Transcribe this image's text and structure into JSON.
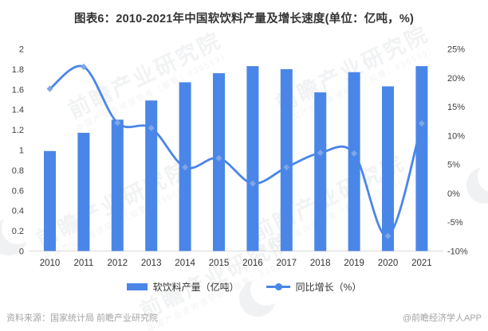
{
  "title": "图表6：2010-2021年中国软饮料产量及增长速度(单位：亿吨，%)",
  "chart_data": {
    "type": "bar",
    "subtype": "bar+line combo, dual axis",
    "title": "图表6：2010-2021年中国软饮料产量及增长速度(单位：亿吨，%)",
    "categories": [
      "2010",
      "2011",
      "2012",
      "2013",
      "2014",
      "2015",
      "2016",
      "2017",
      "2018",
      "2019",
      "2020",
      "2021"
    ],
    "series": [
      {
        "name": "软饮料产量（亿吨）",
        "type": "bar",
        "axis": "left",
        "values": [
          0.99,
          1.17,
          1.3,
          1.49,
          1.67,
          1.76,
          1.83,
          1.8,
          1.57,
          1.77,
          1.63,
          1.83
        ]
      },
      {
        "name": "同比增长（%）",
        "type": "line",
        "axis": "right",
        "values": [
          18.1,
          21.9,
          12.2,
          11.3,
          4.5,
          6.1,
          1.7,
          4.5,
          7.0,
          6.9,
          -7.4,
          12.1
        ]
      }
    ],
    "left_axis": {
      "min": 0,
      "max": 2,
      "step": 0.2,
      "ticks": [
        "2",
        "1.8",
        "1.6",
        "1.4",
        "1.2",
        "1",
        "0.8",
        "0.6",
        "0.4",
        "0.2",
        "0"
      ]
    },
    "right_axis": {
      "min": -10,
      "max": 25,
      "step": 5,
      "ticks": [
        "25%",
        "20%",
        "15%",
        "10%",
        "5%",
        "0%",
        "-5%",
        "-10%"
      ]
    },
    "grid": false,
    "legend_position": "bottom",
    "colors": {
      "bar": "#4a86e8",
      "line": "#4a86e8",
      "marker": "#7fa6e8",
      "axis_line": "#d9d9d9",
      "tick_text": "#404040"
    }
  },
  "legend": {
    "production_label": "软饮料产量（亿吨）",
    "growth_label": "同比增长（%）"
  },
  "footer": {
    "source": "资料来源：国家统计局 前瞻产业研究院",
    "credit": "@前瞻经济学人APP"
  },
  "watermark": {
    "brand": "前瞻产业研究院",
    "sub": "中国产业咨询领导者（股票：839599）"
  }
}
